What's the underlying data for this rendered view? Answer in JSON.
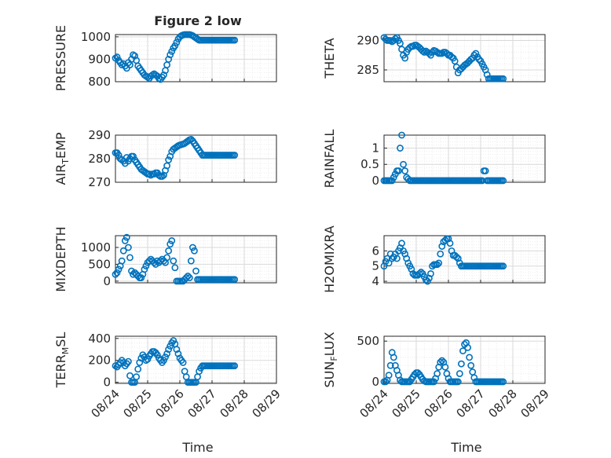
{
  "figure": {
    "title": "Figure 2 low",
    "xlabel": "Time"
  },
  "style": {
    "marker_color": "#0072BD",
    "grid_color": "#d9d9d9",
    "axis_color": "#262626"
  },
  "x_ticks": [
    "08/24",
    "08/25",
    "08/26",
    "08/27",
    "08/28",
    "08/29"
  ],
  "chart_data": [
    {
      "type": "scatter",
      "ylabel": "PRESSURE",
      "ylim": [
        800,
        1010
      ],
      "yticks": [
        800,
        900,
        1000
      ],
      "x": [
        0.0,
        0.05,
        0.1,
        0.15,
        0.2,
        0.25,
        0.3,
        0.35,
        0.4,
        0.45,
        0.5,
        0.55,
        0.6,
        0.65,
        0.7,
        0.75,
        0.8,
        0.85,
        0.9,
        0.95,
        1.0,
        1.05,
        1.1,
        1.15,
        1.2,
        1.25,
        1.3,
        1.35,
        1.4,
        1.45,
        1.5,
        1.55,
        1.6,
        1.65,
        1.7,
        1.75,
        1.8,
        1.85,
        1.9,
        1.95,
        2.0,
        2.05,
        2.1,
        2.15,
        2.2,
        2.25,
        2.3,
        2.35,
        2.4,
        2.45,
        2.5,
        2.55,
        2.6,
        2.65,
        2.7,
        2.75,
        2.8,
        2.85,
        2.9,
        2.95,
        3.0,
        3.05,
        3.1,
        3.15,
        3.2,
        3.25,
        3.3,
        3.35,
        3.4,
        3.45,
        3.5,
        3.55,
        3.6,
        3.65,
        3.7
      ],
      "y": [
        905,
        910,
        895,
        885,
        875,
        880,
        870,
        860,
        885,
        875,
        900,
        920,
        915,
        895,
        870,
        860,
        850,
        840,
        830,
        825,
        820,
        815,
        825,
        830,
        835,
        830,
        825,
        815,
        810,
        820,
        830,
        850,
        875,
        900,
        920,
        935,
        950,
        960,
        975,
        990,
        1000,
        1005,
        1008,
        1010,
        1010,
        1010,
        1010,
        1008,
        1005,
        1000,
        995,
        990,
        985,
        985,
        985,
        985,
        985,
        985,
        985,
        985,
        985,
        985,
        985,
        985,
        985,
        985,
        985,
        985,
        985,
        985,
        985,
        985,
        985,
        985,
        985
      ]
    },
    {
      "type": "scatter",
      "ylabel": "THETA",
      "ylim": [
        283,
        291
      ],
      "yticks": [
        285,
        290
      ],
      "x": [
        0.0,
        0.05,
        0.1,
        0.15,
        0.2,
        0.25,
        0.3,
        0.35,
        0.4,
        0.45,
        0.5,
        0.55,
        0.6,
        0.65,
        0.7,
        0.75,
        0.8,
        0.85,
        0.9,
        0.95,
        1.0,
        1.05,
        1.1,
        1.15,
        1.2,
        1.25,
        1.3,
        1.35,
        1.4,
        1.45,
        1.5,
        1.55,
        1.6,
        1.65,
        1.7,
        1.75,
        1.8,
        1.85,
        1.9,
        1.95,
        2.0,
        2.05,
        2.1,
        2.15,
        2.2,
        2.25,
        2.3,
        2.35,
        2.4,
        2.45,
        2.5,
        2.55,
        2.6,
        2.65,
        2.7,
        2.75,
        2.8,
        2.85,
        2.9,
        2.95,
        3.0,
        3.05,
        3.1,
        3.15,
        3.2,
        3.25,
        3.3,
        3.35,
        3.4,
        3.45,
        3.5,
        3.55,
        3.6,
        3.65,
        3.7
      ],
      "y": [
        290.5,
        290.2,
        290.0,
        290.0,
        290.0,
        289.8,
        290.0,
        290.3,
        290.5,
        290.0,
        289.5,
        288.5,
        287.5,
        287.0,
        288.0,
        288.5,
        288.8,
        289.0,
        289.0,
        289.2,
        289.2,
        289.0,
        288.8,
        288.5,
        288.2,
        288.0,
        288.2,
        288.0,
        287.8,
        287.5,
        288.0,
        288.3,
        288.2,
        288.0,
        287.8,
        287.8,
        287.8,
        288.0,
        288.0,
        287.8,
        287.5,
        287.5,
        287.2,
        287.0,
        286.5,
        285.5,
        284.5,
        285.0,
        285.2,
        285.5,
        285.8,
        286.0,
        286.2,
        286.5,
        286.8,
        287.0,
        287.5,
        287.8,
        287.2,
        286.8,
        286.5,
        286.0,
        285.5,
        285.0,
        284.2,
        283.5,
        283.5,
        283.5,
        283.5,
        283.5,
        283.5,
        283.5,
        283.5,
        283.5,
        283.5
      ]
    },
    {
      "type": "scatter",
      "ylabel": "AIR_TEMP",
      "ylim": [
        270,
        290
      ],
      "yticks": [
        270,
        280,
        290
      ],
      "x": [
        0.0,
        0.05,
        0.1,
        0.15,
        0.2,
        0.25,
        0.3,
        0.35,
        0.4,
        0.45,
        0.5,
        0.55,
        0.6,
        0.65,
        0.7,
        0.75,
        0.8,
        0.85,
        0.9,
        0.95,
        1.0,
        1.05,
        1.1,
        1.15,
        1.2,
        1.25,
        1.3,
        1.35,
        1.4,
        1.45,
        1.5,
        1.55,
        1.6,
        1.65,
        1.7,
        1.75,
        1.8,
        1.85,
        1.9,
        1.95,
        2.0,
        2.05,
        2.1,
        2.15,
        2.2,
        2.25,
        2.3,
        2.35,
        2.4,
        2.45,
        2.5,
        2.55,
        2.6,
        2.65,
        2.7,
        2.75,
        2.8,
        2.85,
        2.9,
        2.95,
        3.0,
        3.05,
        3.1,
        3.15,
        3.2,
        3.25,
        3.3,
        3.35,
        3.4,
        3.45,
        3.5,
        3.55,
        3.6,
        3.65,
        3.7
      ],
      "y": [
        282.5,
        282.5,
        281.5,
        280.0,
        279.5,
        279.0,
        278.0,
        280.5,
        279.0,
        280.0,
        281.0,
        281.0,
        279.5,
        278.5,
        277.5,
        276.5,
        275.5,
        275.0,
        274.5,
        274.0,
        273.5,
        273.5,
        273.0,
        273.5,
        273.5,
        274.0,
        274.0,
        273.0,
        272.5,
        272.5,
        273.0,
        275.0,
        277.0,
        279.5,
        281.0,
        283.0,
        284.0,
        284.5,
        285.0,
        285.5,
        285.8,
        286.0,
        286.2,
        286.5,
        287.0,
        287.5,
        288.0,
        288.2,
        287.5,
        286.5,
        285.5,
        284.5,
        283.5,
        282.5,
        281.5,
        281.5,
        281.5,
        281.5,
        281.5,
        281.5,
        281.5,
        281.5,
        281.5,
        281.5,
        281.5,
        281.5,
        281.5,
        281.5,
        281.5,
        281.5,
        281.5,
        281.5,
        281.5,
        281.5,
        281.5
      ]
    },
    {
      "type": "scatter",
      "ylabel": "RAINFALL",
      "ylim": [
        -0.05,
        1.4
      ],
      "yticks": [
        0,
        0.5,
        1
      ],
      "x": [
        0.0,
        0.05,
        0.1,
        0.15,
        0.2,
        0.25,
        0.3,
        0.35,
        0.4,
        0.45,
        0.5,
        0.55,
        0.6,
        0.65,
        0.7,
        0.75,
        0.8,
        0.85,
        0.9,
        0.95,
        1.0,
        1.05,
        1.1,
        1.15,
        1.2,
        1.25,
        1.3,
        1.35,
        1.4,
        1.45,
        1.5,
        1.55,
        1.6,
        1.65,
        1.7,
        1.75,
        1.8,
        1.85,
        1.9,
        1.95,
        2.0,
        2.05,
        2.1,
        2.15,
        2.2,
        2.25,
        2.3,
        2.35,
        2.4,
        2.45,
        2.5,
        2.55,
        2.6,
        2.65,
        2.7,
        2.75,
        2.8,
        2.85,
        2.9,
        2.95,
        3.0,
        3.05,
        3.1,
        3.15,
        3.2,
        3.25,
        3.3,
        3.35,
        3.4,
        3.45,
        3.5,
        3.55,
        3.6,
        3.65,
        3.7
      ],
      "y": [
        0,
        0,
        0,
        0,
        0,
        0,
        0.1,
        0.2,
        0.3,
        0.3,
        1.0,
        1.4,
        0.5,
        0.3,
        0.1,
        0.05,
        0,
        0,
        0,
        0,
        0,
        0,
        0,
        0,
        0,
        0,
        0,
        0,
        0,
        0,
        0,
        0,
        0,
        0,
        0,
        0,
        0,
        0,
        0,
        0,
        0,
        0,
        0,
        0,
        0,
        0,
        0,
        0,
        0,
        0,
        0,
        0,
        0,
        0,
        0,
        0,
        0,
        0,
        0,
        0,
        0,
        0,
        0.3,
        0.3,
        0,
        0,
        0,
        0,
        0,
        0,
        0,
        0,
        0,
        0,
        0
      ]
    },
    {
      "type": "scatter",
      "ylabel": "MIXDEPTH",
      "ylim": [
        -50,
        1350
      ],
      "yticks": [
        0,
        500,
        1000
      ],
      "x": [
        0.0,
        0.05,
        0.1,
        0.15,
        0.2,
        0.25,
        0.3,
        0.35,
        0.4,
        0.45,
        0.5,
        0.55,
        0.6,
        0.65,
        0.7,
        0.75,
        0.8,
        0.85,
        0.9,
        0.95,
        1.0,
        1.05,
        1.1,
        1.15,
        1.2,
        1.25,
        1.3,
        1.35,
        1.4,
        1.45,
        1.5,
        1.55,
        1.6,
        1.65,
        1.7,
        1.75,
        1.8,
        1.85,
        1.9,
        1.95,
        2.0,
        2.05,
        2.1,
        2.15,
        2.2,
        2.25,
        2.3,
        2.35,
        2.4,
        2.45,
        2.5,
        2.55,
        2.6,
        2.65,
        2.7,
        2.75,
        2.8,
        2.85,
        2.9,
        2.95,
        3.0,
        3.05,
        3.1,
        3.15,
        3.2,
        3.25,
        3.3,
        3.35,
        3.4,
        3.45,
        3.5,
        3.55,
        3.6,
        3.65,
        3.7
      ],
      "y": [
        200,
        250,
        350,
        450,
        600,
        900,
        1200,
        1300,
        1000,
        700,
        300,
        200,
        250,
        200,
        150,
        100,
        100,
        200,
        350,
        450,
        550,
        600,
        650,
        600,
        550,
        500,
        600,
        550,
        600,
        650,
        600,
        550,
        700,
        900,
        1100,
        1200,
        600,
        400,
        0,
        0,
        0,
        0,
        0,
        50,
        100,
        150,
        100,
        600,
        1000,
        900,
        300,
        50,
        50,
        50,
        50,
        50,
        50,
        50,
        50,
        50,
        50,
        50,
        50,
        50,
        50,
        50,
        50,
        50,
        50,
        50,
        50,
        50,
        50,
        50,
        50
      ]
    },
    {
      "type": "scatter",
      "ylabel": "H2OMIXRA",
      "ylim": [
        3.9,
        7.0
      ],
      "yticks": [
        4,
        5,
        6
      ],
      "x": [
        0.0,
        0.05,
        0.1,
        0.15,
        0.2,
        0.25,
        0.3,
        0.35,
        0.4,
        0.45,
        0.5,
        0.55,
        0.6,
        0.65,
        0.7,
        0.75,
        0.8,
        0.85,
        0.9,
        0.95,
        1.0,
        1.05,
        1.1,
        1.15,
        1.2,
        1.25,
        1.3,
        1.35,
        1.4,
        1.45,
        1.5,
        1.55,
        1.6,
        1.65,
        1.7,
        1.75,
        1.8,
        1.85,
        1.9,
        1.95,
        2.0,
        2.05,
        2.1,
        2.15,
        2.2,
        2.25,
        2.3,
        2.35,
        2.4,
        2.45,
        2.5,
        2.55,
        2.6,
        2.65,
        2.7,
        2.75,
        2.8,
        2.85,
        2.9,
        2.95,
        3.0,
        3.05,
        3.1,
        3.15,
        3.2,
        3.25,
        3.3,
        3.35,
        3.4,
        3.45,
        3.5,
        3.55,
        3.6,
        3.65,
        3.7
      ],
      "y": [
        5.0,
        5.3,
        5.5,
        5.2,
        5.8,
        5.5,
        5.6,
        5.8,
        5.5,
        6.0,
        6.2,
        6.5,
        6.0,
        5.8,
        5.5,
        5.2,
        5.0,
        4.8,
        4.5,
        4.4,
        4.4,
        4.4,
        4.5,
        4.6,
        4.5,
        4.3,
        4.1,
        4.0,
        4.2,
        4.5,
        5.0,
        5.1,
        5.1,
        5.1,
        5.2,
        5.8,
        6.3,
        6.6,
        6.7,
        6.8,
        6.8,
        6.5,
        6.0,
        5.7,
        5.7,
        5.6,
        5.5,
        5.2,
        5.0,
        5.0,
        5.0,
        5.0,
        5.0,
        5.0,
        5.0,
        5.0,
        5.0,
        5.0,
        5.0,
        5.0,
        5.0,
        5.0,
        5.0,
        5.0,
        5.0,
        5.0,
        5.0,
        5.0,
        5.0,
        5.0,
        5.0,
        5.0,
        5.0,
        5.0,
        5.0
      ]
    },
    {
      "type": "scatter",
      "ylabel": "TERR_MSL",
      "ylim": [
        -10,
        420
      ],
      "yticks": [
        0,
        200,
        400
      ],
      "x": [
        0.0,
        0.05,
        0.1,
        0.15,
        0.2,
        0.25,
        0.3,
        0.35,
        0.4,
        0.45,
        0.5,
        0.55,
        0.6,
        0.65,
        0.7,
        0.75,
        0.8,
        0.85,
        0.9,
        0.95,
        1.0,
        1.05,
        1.1,
        1.15,
        1.2,
        1.25,
        1.3,
        1.35,
        1.4,
        1.45,
        1.5,
        1.55,
        1.6,
        1.65,
        1.7,
        1.75,
        1.8,
        1.85,
        1.9,
        1.95,
        2.0,
        2.05,
        2.1,
        2.15,
        2.2,
        2.25,
        2.3,
        2.35,
        2.4,
        2.45,
        2.5,
        2.55,
        2.6,
        2.65,
        2.7,
        2.75,
        2.8,
        2.85,
        2.9,
        2.95,
        3.0,
        3.05,
        3.1,
        3.15,
        3.2,
        3.25,
        3.3,
        3.35,
        3.4,
        3.45,
        3.5,
        3.55,
        3.6,
        3.65,
        3.7
      ],
      "y": [
        150,
        140,
        160,
        180,
        200,
        180,
        150,
        170,
        190,
        60,
        0,
        0,
        0,
        50,
        120,
        180,
        220,
        250,
        230,
        200,
        210,
        240,
        260,
        280,
        280,
        270,
        250,
        220,
        200,
        180,
        200,
        230,
        260,
        300,
        330,
        360,
        380,
        350,
        300,
        260,
        220,
        200,
        180,
        100,
        50,
        0,
        0,
        0,
        0,
        0,
        0,
        50,
        100,
        130,
        150,
        150,
        150,
        150,
        150,
        150,
        150,
        150,
        150,
        150,
        150,
        150,
        150,
        150,
        150,
        150,
        150,
        150,
        150,
        150,
        150
      ]
    },
    {
      "type": "scatter",
      "ylabel": "SUN_FLUX",
      "ylim": [
        -20,
        560
      ],
      "yticks": [
        0,
        500
      ],
      "x": [
        0.0,
        0.05,
        0.1,
        0.15,
        0.2,
        0.25,
        0.3,
        0.35,
        0.4,
        0.45,
        0.5,
        0.55,
        0.6,
        0.65,
        0.7,
        0.75,
        0.8,
        0.85,
        0.9,
        0.95,
        1.0,
        1.05,
        1.1,
        1.15,
        1.2,
        1.25,
        1.3,
        1.35,
        1.4,
        1.45,
        1.5,
        1.55,
        1.6,
        1.65,
        1.7,
        1.75,
        1.8,
        1.85,
        1.9,
        1.95,
        2.0,
        2.05,
        2.1,
        2.15,
        2.2,
        2.25,
        2.3,
        2.35,
        2.4,
        2.45,
        2.5,
        2.55,
        2.6,
        2.65,
        2.7,
        2.75,
        2.8,
        2.85,
        2.9,
        2.95,
        3.0,
        3.05,
        3.1,
        3.15,
        3.2,
        3.25,
        3.3,
        3.35,
        3.4,
        3.45,
        3.5,
        3.55,
        3.6,
        3.65,
        3.7
      ],
      "y": [
        0,
        0,
        20,
        80,
        200,
        360,
        300,
        200,
        140,
        80,
        20,
        0,
        0,
        0,
        0,
        0,
        0,
        30,
        60,
        90,
        110,
        110,
        90,
        60,
        30,
        10,
        0,
        0,
        0,
        0,
        0,
        0,
        40,
        100,
        180,
        240,
        260,
        240,
        180,
        100,
        40,
        0,
        0,
        0,
        0,
        0,
        0,
        100,
        220,
        380,
        460,
        480,
        420,
        300,
        200,
        120,
        50,
        0,
        0,
        0,
        0,
        0,
        0,
        0,
        0,
        0,
        0,
        0,
        0,
        0,
        0,
        0,
        0,
        0,
        0
      ]
    }
  ]
}
